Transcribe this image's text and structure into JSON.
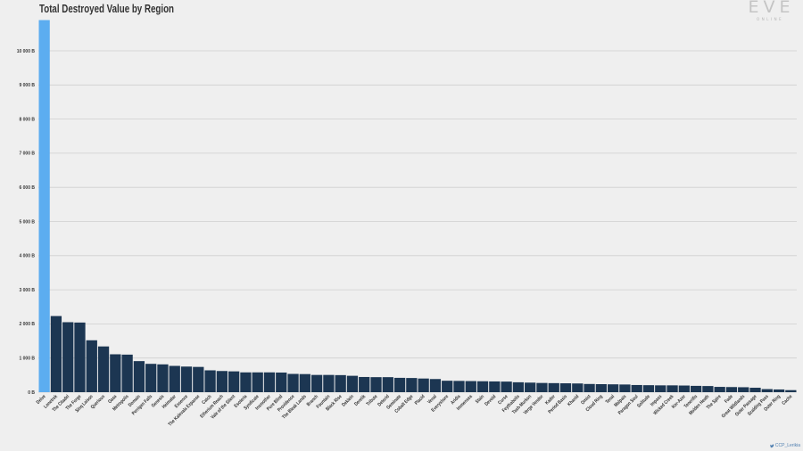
{
  "logo": {
    "main": "EVE",
    "sub": "ONLINE"
  },
  "credit": {
    "icon": "twitter-bird-icon",
    "handle": "CCP_Lerikia"
  },
  "colors": {
    "background": "#efefef",
    "highlight_bar": "#5cadf0",
    "bar": "#1c3652",
    "grid": "#cfcfcf",
    "text": "#333333",
    "credit": "#4f7fb0"
  },
  "chart_data": {
    "type": "bar",
    "title": "Total Destroyed Value by Region",
    "ylim": [
      0,
      11000
    ],
    "yticks": [
      0,
      1000,
      2000,
      3000,
      4000,
      5000,
      6000,
      7000,
      8000,
      9000,
      10000
    ],
    "ytick_labels": [
      "0 B",
      "1 000 B",
      "2 000 B",
      "3 000 B",
      "4 000 B",
      "5 000 B",
      "6 000 B",
      "7 000 B",
      "8 000 B",
      "9 000 B",
      "10 000 B"
    ],
    "grid": true,
    "highlight_index": 0,
    "categories": [
      "Delve",
      "Lonetrek",
      "The Citadel",
      "The Forge",
      "Sinq Laison",
      "Querious",
      "Oasa",
      "Metropolis",
      "Domain",
      "Perrigen Falls",
      "Genesis",
      "Heimatar",
      "Essence",
      "The Kalevala Expanse",
      "Catch",
      "Etherium Reach",
      "Vale of the Silent",
      "Esoteria",
      "Syndicate",
      "Insmother",
      "Pure Blind",
      "Providence",
      "The Bleak Lands",
      "Branch",
      "Fountain",
      "Black Rise",
      "Deklein",
      "Derelik",
      "Tribute",
      "Detorid",
      "Geminate",
      "Cobalt Edge",
      "Placid",
      "Venal",
      "Everyshore",
      "Aridia",
      "Immensea",
      "Stain",
      "Devoid",
      "Curse",
      "Feythabolis",
      "Tash-Murkon",
      "Verge Vendor",
      "Kador",
      "Period Basis",
      "Khanid",
      "Omist",
      "Cloud Ring",
      "Tenal",
      "Malpais",
      "Paragon Soul",
      "Solitude",
      "Impass",
      "Wicked Creek",
      "Kor-Azor",
      "Tenerifis",
      "Molden Heath",
      "The Spire",
      "Fade",
      "Great Wildlands",
      "Outer Passage",
      "Scalding Pass",
      "Outer Ring",
      "Cache"
    ],
    "values": [
      10900,
      2230,
      2050,
      2040,
      1520,
      1340,
      1110,
      1100,
      910,
      830,
      815,
      770,
      750,
      740,
      640,
      620,
      610,
      580,
      580,
      580,
      575,
      535,
      530,
      505,
      505,
      500,
      480,
      445,
      440,
      440,
      420,
      415,
      400,
      385,
      335,
      330,
      325,
      320,
      315,
      310,
      290,
      280,
      270,
      265,
      260,
      255,
      240,
      235,
      230,
      225,
      210,
      205,
      200,
      200,
      195,
      185,
      180,
      155,
      150,
      145,
      130,
      90,
      80,
      60
    ]
  }
}
